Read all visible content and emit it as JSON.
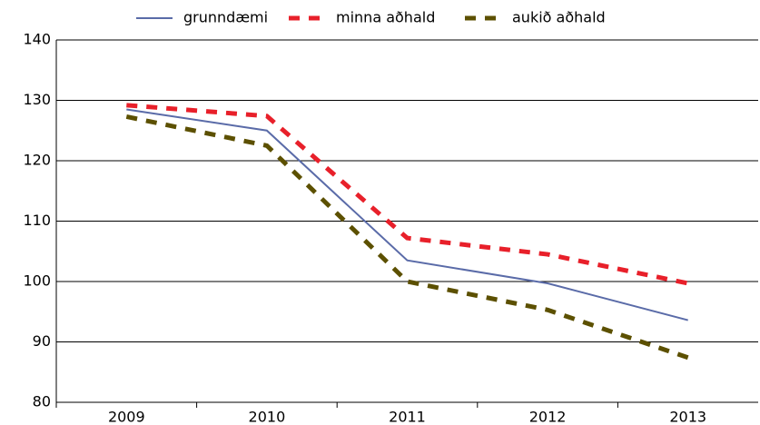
{
  "chart_data": {
    "type": "line",
    "categories": [
      "2009",
      "2010",
      "2011",
      "2012",
      "2013"
    ],
    "series": [
      {
        "name": "grunndæmi",
        "color": "#5a6ba8",
        "dash": false,
        "values": [
          128.5,
          125,
          103.5,
          99.7,
          93.6
        ]
      },
      {
        "name": "minna aðhald",
        "color": "#e8202a",
        "dash": true,
        "values": [
          129.2,
          127.4,
          107.2,
          104.5,
          99.7
        ]
      },
      {
        "name": "aukið aðhald",
        "color": "#5c5000",
        "dash": true,
        "values": [
          127.3,
          122.5,
          100,
          95.3,
          87.4
        ]
      }
    ],
    "ylim": [
      80,
      140
    ],
    "yticks": [
      80,
      90,
      100,
      110,
      120,
      130,
      140
    ],
    "grid": true
  }
}
